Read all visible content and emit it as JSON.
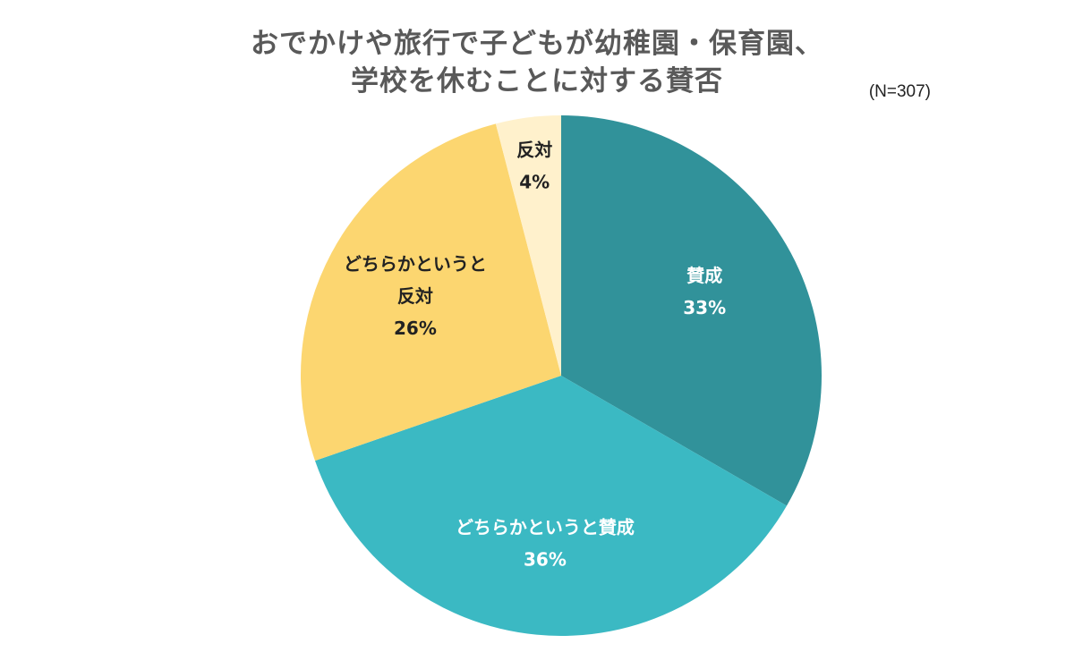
{
  "chart_data": {
    "type": "pie",
    "title_lines": [
      "おでかけや旅行で子どもが幼稚園・保育園、",
      "学校を休むことに対する賛否"
    ],
    "sample_size": "(N=307)",
    "start_angle_deg": 0,
    "direction": "clockwise",
    "slices": [
      {
        "label_lines": [
          "賛成"
        ],
        "value": 33,
        "value_label": "33%",
        "color": "#31929A",
        "text_color": "#ffffff"
      },
      {
        "label_lines": [
          "どちらかというと賛成"
        ],
        "value": 36,
        "value_label": "36%",
        "color": "#3BB9C3",
        "text_color": "#ffffff"
      },
      {
        "label_lines": [
          "どちらかというと",
          "反対"
        ],
        "value": 26,
        "value_label": "26%",
        "color": "#FCD670",
        "text_color": "#222222"
      },
      {
        "label_lines": [
          "反対"
        ],
        "value": 4,
        "value_label": "4%",
        "color": "#FFF1CC",
        "text_color": "#222222"
      }
    ]
  }
}
